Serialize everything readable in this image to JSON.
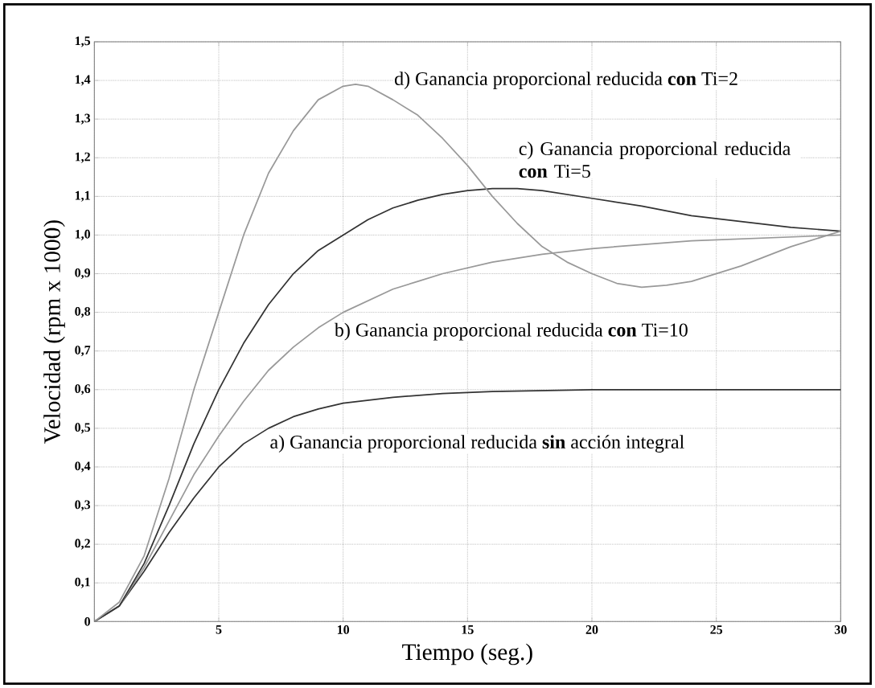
{
  "chart_data": {
    "type": "line",
    "xlabel": "Tiempo (seg.)",
    "ylabel": "Velocidad (rpm x 1000)",
    "xlim": [
      0,
      30
    ],
    "ylim": [
      0,
      1.5
    ],
    "xticks": [
      {
        "value": 0,
        "label": null
      },
      5,
      10,
      15,
      20,
      25,
      30
    ],
    "yticks": [
      0,
      {
        "value": 0.1,
        "label": "0,1"
      },
      {
        "value": 0.2,
        "label": "0,2"
      },
      {
        "value": 0.3,
        "label": "0,3"
      },
      {
        "value": 0.4,
        "label": "0,4"
      },
      {
        "value": 0.5,
        "label": "0,5"
      },
      {
        "value": 0.6,
        "label": "0,6"
      },
      {
        "value": 0.7,
        "label": "0,7"
      },
      {
        "value": 0.8,
        "label": "0,8"
      },
      {
        "value": 0.9,
        "label": "0,9"
      },
      {
        "value": 1.0,
        "label": "1,0"
      },
      {
        "value": 1.1,
        "label": "1,1"
      },
      {
        "value": 1.2,
        "label": "1,2"
      },
      {
        "value": 1.3,
        "label": "1,3"
      },
      {
        "value": 1.4,
        "label": "1,4"
      },
      {
        "value": 1.5,
        "label": "1,5"
      }
    ],
    "grid": true,
    "series": [
      {
        "name": "a) Ganancia proporcional reducida **sin** acción integral",
        "color": "#333333",
        "x": [
          0,
          1,
          2,
          3,
          4,
          5,
          6,
          7,
          8,
          9,
          10,
          12,
          14,
          16,
          20,
          25,
          30
        ],
        "values": [
          0,
          0.04,
          0.13,
          0.23,
          0.32,
          0.4,
          0.46,
          0.5,
          0.53,
          0.55,
          0.565,
          0.58,
          0.59,
          0.595,
          0.6,
          0.6,
          0.6
        ]
      },
      {
        "name": "b) Ganancia proporcional reducida **con** Ti=10",
        "color": "#999999",
        "x": [
          0,
          1,
          2,
          3,
          4,
          5,
          6,
          7,
          8,
          9,
          10,
          11,
          12,
          13,
          14,
          15,
          16,
          18,
          20,
          22,
          24,
          26,
          28,
          30
        ],
        "values": [
          0,
          0.04,
          0.14,
          0.26,
          0.38,
          0.48,
          0.57,
          0.65,
          0.71,
          0.76,
          0.8,
          0.83,
          0.86,
          0.88,
          0.9,
          0.915,
          0.93,
          0.95,
          0.965,
          0.975,
          0.985,
          0.99,
          0.995,
          1.0
        ]
      },
      {
        "name": "c) Ganancia proporcional reducida **con** Ti=5",
        "color": "#333333",
        "x": [
          0,
          1,
          2,
          3,
          4,
          5,
          6,
          7,
          8,
          9,
          10,
          11,
          12,
          13,
          14,
          15,
          16,
          17,
          18,
          19,
          20,
          22,
          24,
          26,
          28,
          30
        ],
        "values": [
          0,
          0.04,
          0.15,
          0.3,
          0.46,
          0.6,
          0.72,
          0.82,
          0.9,
          0.96,
          1.0,
          1.04,
          1.07,
          1.09,
          1.105,
          1.115,
          1.12,
          1.12,
          1.115,
          1.105,
          1.095,
          1.075,
          1.05,
          1.035,
          1.02,
          1.01
        ]
      },
      {
        "name": "d) Ganancia proporcional reducida **con** Ti=2",
        "color": "#999999",
        "x": [
          0,
          1,
          2,
          3,
          4,
          5,
          6,
          7,
          8,
          9,
          10,
          10.5,
          11,
          12,
          13,
          14,
          15,
          16,
          17,
          18,
          19,
          20,
          21,
          22,
          23,
          24,
          25,
          26,
          27,
          28,
          29,
          30
        ],
        "values": [
          0,
          0.05,
          0.17,
          0.37,
          0.6,
          0.8,
          1.0,
          1.16,
          1.27,
          1.35,
          1.385,
          1.39,
          1.385,
          1.35,
          1.31,
          1.25,
          1.18,
          1.1,
          1.03,
          0.97,
          0.93,
          0.9,
          0.875,
          0.865,
          0.87,
          0.88,
          0.9,
          0.92,
          0.945,
          0.97,
          0.99,
          1.01
        ]
      }
    ]
  }
}
